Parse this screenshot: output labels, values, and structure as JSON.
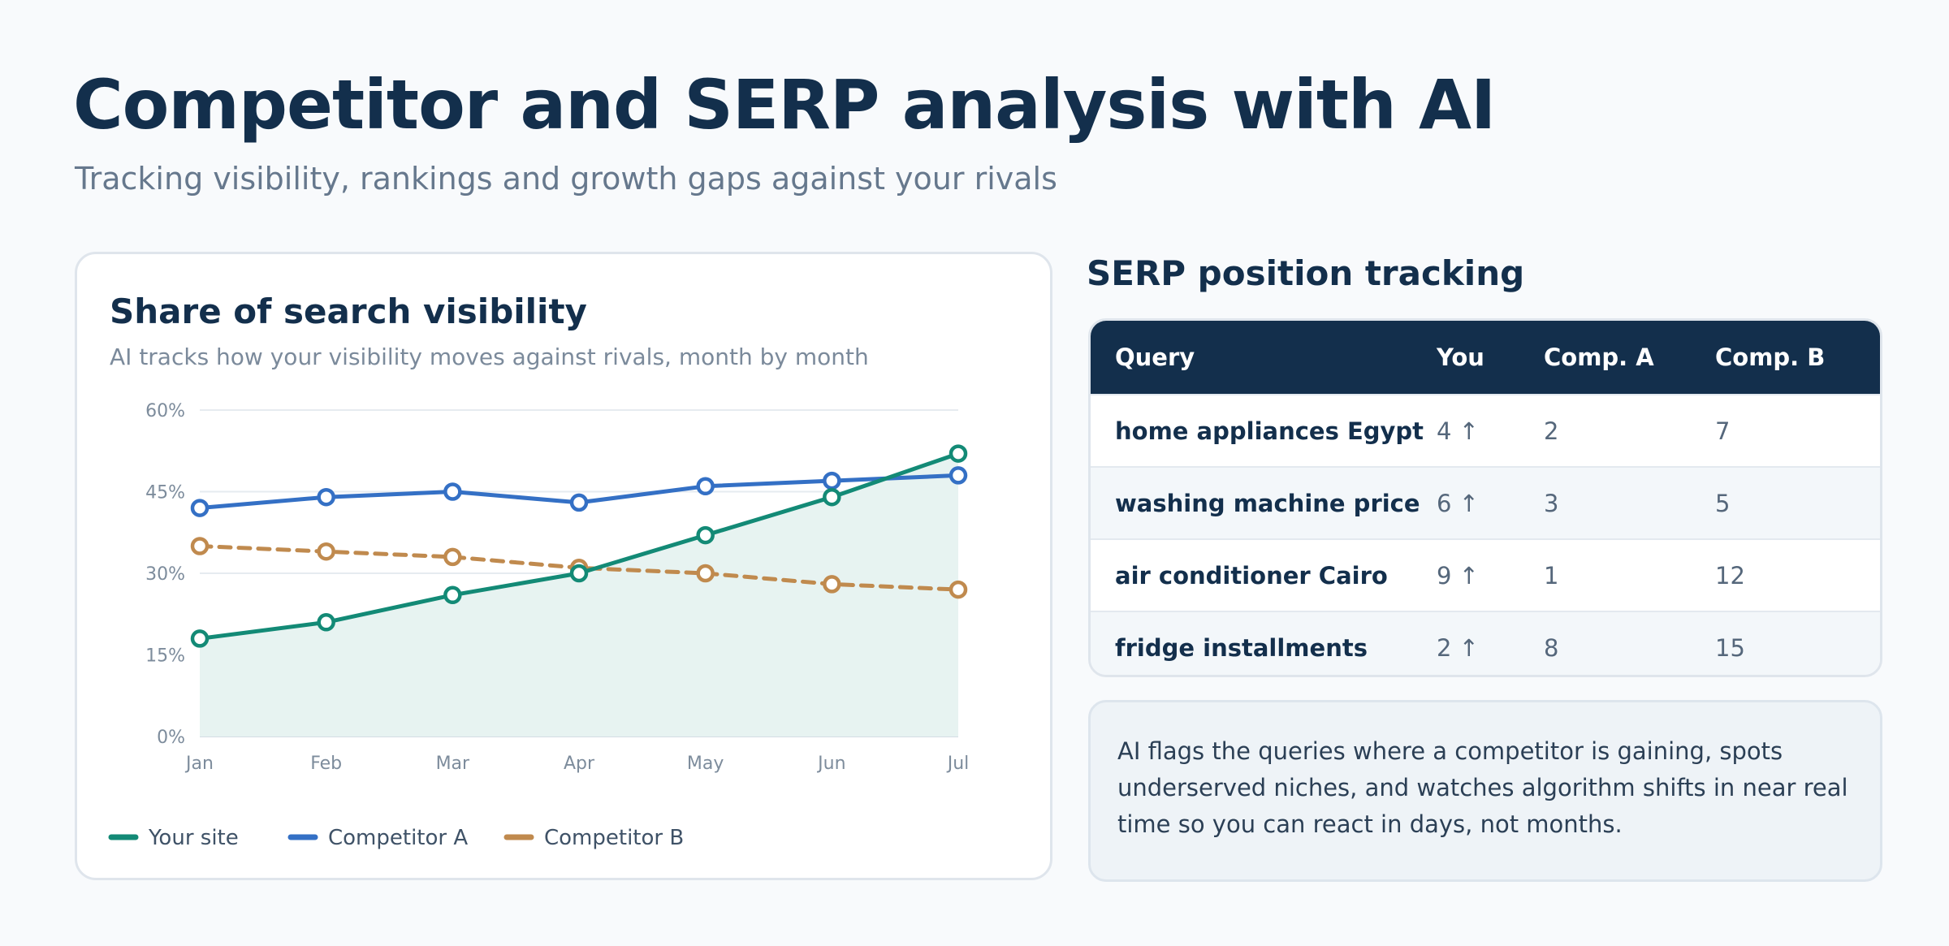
{
  "header": {
    "title": "Competitor and SERP analysis with AI",
    "subtitle": "Tracking visibility, rankings and growth gaps against your rivals"
  },
  "chart_panel": {
    "title": "Share of search visibility",
    "subtitle": "AI tracks how your visibility moves against rivals, month by month"
  },
  "chart_data": {
    "type": "line",
    "title": "Share of search visibility",
    "subtitle": "AI tracks how your visibility moves against rivals, month by month",
    "x": [
      "Jan",
      "Feb",
      "Mar",
      "Apr",
      "May",
      "Jun",
      "Jul"
    ],
    "ylim": [
      0,
      60
    ],
    "yticks": [
      "0%",
      "15%",
      "30%",
      "45%",
      "60%"
    ],
    "ytick_values": [
      0,
      15,
      30,
      45,
      60
    ],
    "grid": true,
    "legend_position": "bottom-left",
    "series": [
      {
        "name": "Your site",
        "values": [
          18,
          21,
          26,
          30,
          37,
          44,
          52
        ],
        "color": "#138a76",
        "style": "solid",
        "area_fill": "#e7f3f1"
      },
      {
        "name": "Competitor A",
        "values": [
          42,
          44,
          45,
          43,
          46,
          47,
          48
        ],
        "color": "#3470c5",
        "style": "solid"
      },
      {
        "name": "Competitor B",
        "values": [
          35,
          34,
          33,
          31,
          30,
          28,
          27
        ],
        "color": "#c08a4e",
        "style": "dashed"
      }
    ]
  },
  "serp_panel": {
    "title": "SERP position tracking",
    "columns": [
      "Query",
      "You",
      "Comp. A",
      "Comp. B"
    ],
    "rows": [
      {
        "query": "home appliances Egypt",
        "you": "4 ↑",
        "comp_a": "2",
        "comp_b": "7"
      },
      {
        "query": "washing machine price",
        "you": "6 ↑",
        "comp_a": "3",
        "comp_b": "5"
      },
      {
        "query": "air conditioner Cairo",
        "you": "9 ↑",
        "comp_a": "1",
        "comp_b": "12"
      },
      {
        "query": "fridge installments",
        "you": "2 ↑",
        "comp_a": "8",
        "comp_b": "15"
      }
    ]
  },
  "note": {
    "text": "AI flags the queries where a competitor is gaining, spots underserved niches, and watches algorithm shifts in near real time so you can react in days, not months."
  }
}
